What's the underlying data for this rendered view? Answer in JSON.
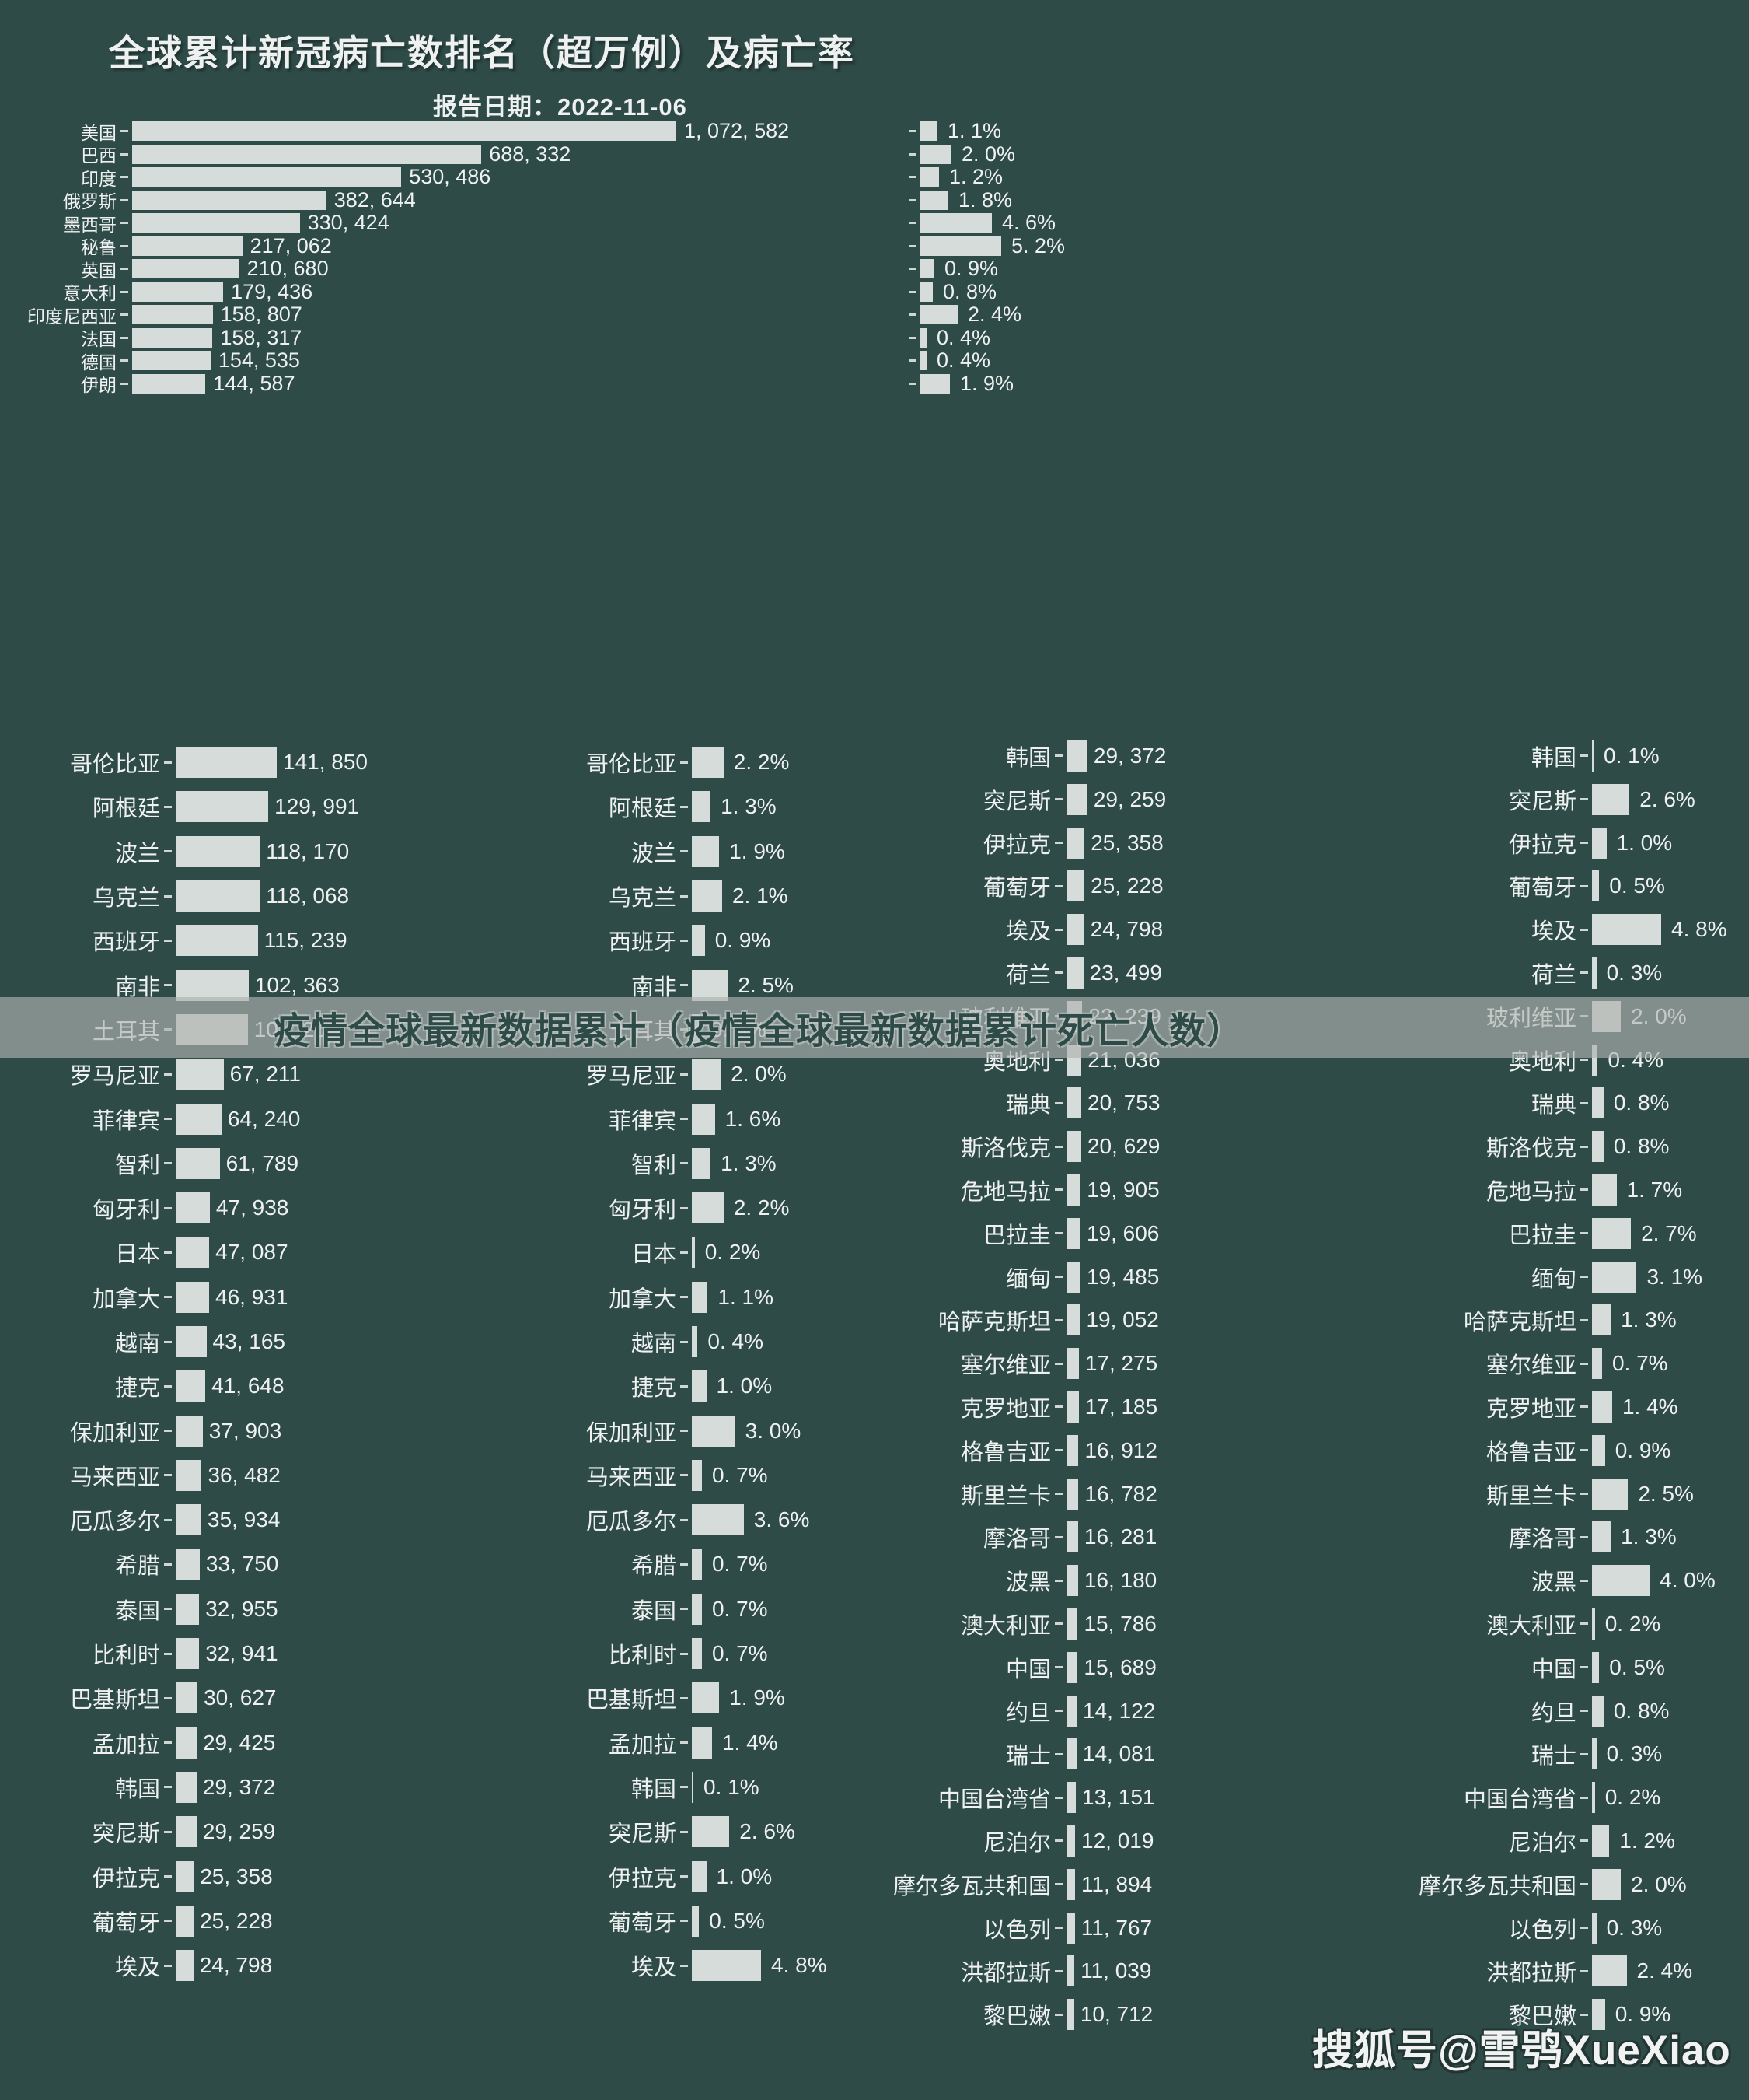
{
  "meta": {
    "title": "全球累计新冠病亡数排名（超万例）及病亡率",
    "subtitle": "报告日期：2022-11-06",
    "watermark_center": "疫情全球最新数据累计（疫情全球最新数据累计死亡人数）",
    "watermark_corner": "搜狐号@雪鸮XueXiao"
  },
  "colors": {
    "background": "#2e4b48",
    "bar": "#d6dcd9",
    "text": "#eef1f0",
    "band": "rgba(174,178,175,0.65)",
    "band_text": "#2e4b48"
  },
  "chart_data": [
    {
      "id": "top-ranking",
      "type": "bar",
      "orientation": "horizontal",
      "title": "全球累计新冠病亡数排名（超万例）及病亡率",
      "subtitle": "报告日期：2022-11-06",
      "grid": false,
      "legend": "none",
      "categories": [
        "美国",
        "巴西",
        "印度",
        "俄罗斯",
        "墨西哥",
        "秘鲁",
        "英国",
        "意大利",
        "印度尼西亚",
        "法国",
        "德国",
        "伊朗"
      ],
      "series": [
        {
          "name": "病亡数",
          "axis_max": 1072582,
          "values": [
            1072582,
            688332,
            530486,
            382644,
            330424,
            217062,
            210680,
            179436,
            158807,
            158317,
            154535,
            144587
          ]
        },
        {
          "name": "病亡率",
          "unit": "%",
          "axis_max": 5.2,
          "values": [
            1.1,
            2.0,
            1.2,
            1.8,
            4.6,
            5.2,
            0.9,
            0.8,
            2.4,
            0.4,
            0.4,
            1.9
          ]
        }
      ]
    },
    {
      "id": "bottom-left-group",
      "type": "bar",
      "orientation": "horizontal",
      "grid": false,
      "legend": "none",
      "categories": [
        "哥伦比亚",
        "阿根廷",
        "波兰",
        "乌克兰",
        "西班牙",
        "南非",
        "土耳其",
        "罗马尼亚",
        "菲律宾",
        "智利",
        "匈牙利",
        "日本",
        "加拿大",
        "越南",
        "捷克",
        "保加利亚",
        "马来西亚",
        "厄瓜多尔",
        "希腊",
        "泰国",
        "比利时",
        "巴基斯坦",
        "孟加拉",
        "韩国",
        "突尼斯",
        "伊拉克",
        "葡萄牙",
        "埃及"
      ],
      "series": [
        {
          "name": "病亡数",
          "axis_max": 141850,
          "values": [
            141850,
            129991,
            118170,
            118068,
            115239,
            102363,
            101203,
            67211,
            64240,
            61789,
            47938,
            47087,
            46931,
            43165,
            41648,
            37903,
            36482,
            35934,
            33750,
            32955,
            32941,
            30627,
            29425,
            29372,
            29259,
            25358,
            25228,
            24798
          ]
        },
        {
          "name": "病亡率",
          "unit": "%",
          "axis_max": 4.8,
          "values": [
            2.2,
            1.3,
            1.9,
            2.1,
            0.9,
            2.5,
            0.6,
            2.0,
            1.6,
            1.3,
            2.2,
            0.2,
            1.1,
            0.4,
            1.0,
            3.0,
            0.7,
            3.6,
            0.7,
            0.7,
            0.7,
            1.9,
            1.4,
            0.1,
            2.6,
            1.0,
            0.5,
            4.8
          ]
        }
      ]
    },
    {
      "id": "bottom-right-group",
      "type": "bar",
      "orientation": "horizontal",
      "grid": false,
      "legend": "none",
      "categories": [
        "韩国",
        "突尼斯",
        "伊拉克",
        "葡萄牙",
        "埃及",
        "荷兰",
        "玻利维亚",
        "奥地利",
        "瑞典",
        "斯洛伐克",
        "危地马拉",
        "巴拉圭",
        "缅甸",
        "哈萨克斯坦",
        "塞尔维亚",
        "克罗地亚",
        "格鲁吉亚",
        "斯里兰卡",
        "摩洛哥",
        "波黑",
        "澳大利亚",
        "中国",
        "约旦",
        "瑞士",
        "中国台湾省",
        "尼泊尔",
        "摩尔多瓦共和国",
        "以色列",
        "洪都拉斯",
        "黎巴嫩"
      ],
      "series": [
        {
          "name": "病亡数",
          "axis_max": 141850,
          "values": [
            29372,
            29259,
            25358,
            25228,
            24798,
            23499,
            22239,
            21036,
            20753,
            20629,
            19905,
            19606,
            19485,
            19052,
            17275,
            17185,
            16912,
            16782,
            16281,
            16180,
            15786,
            15689,
            14122,
            14081,
            13151,
            12019,
            11894,
            11767,
            11039,
            10712
          ]
        },
        {
          "name": "病亡率",
          "unit": "%",
          "axis_max": 4.8,
          "values": [
            0.1,
            2.6,
            1.0,
            0.5,
            4.8,
            0.3,
            2.0,
            0.4,
            0.8,
            0.8,
            1.7,
            2.7,
            3.1,
            1.3,
            0.7,
            1.4,
            0.9,
            2.5,
            1.3,
            4.0,
            0.2,
            0.5,
            0.8,
            0.3,
            0.2,
            1.2,
            2.0,
            0.3,
            2.4,
            0.9
          ]
        }
      ]
    }
  ]
}
